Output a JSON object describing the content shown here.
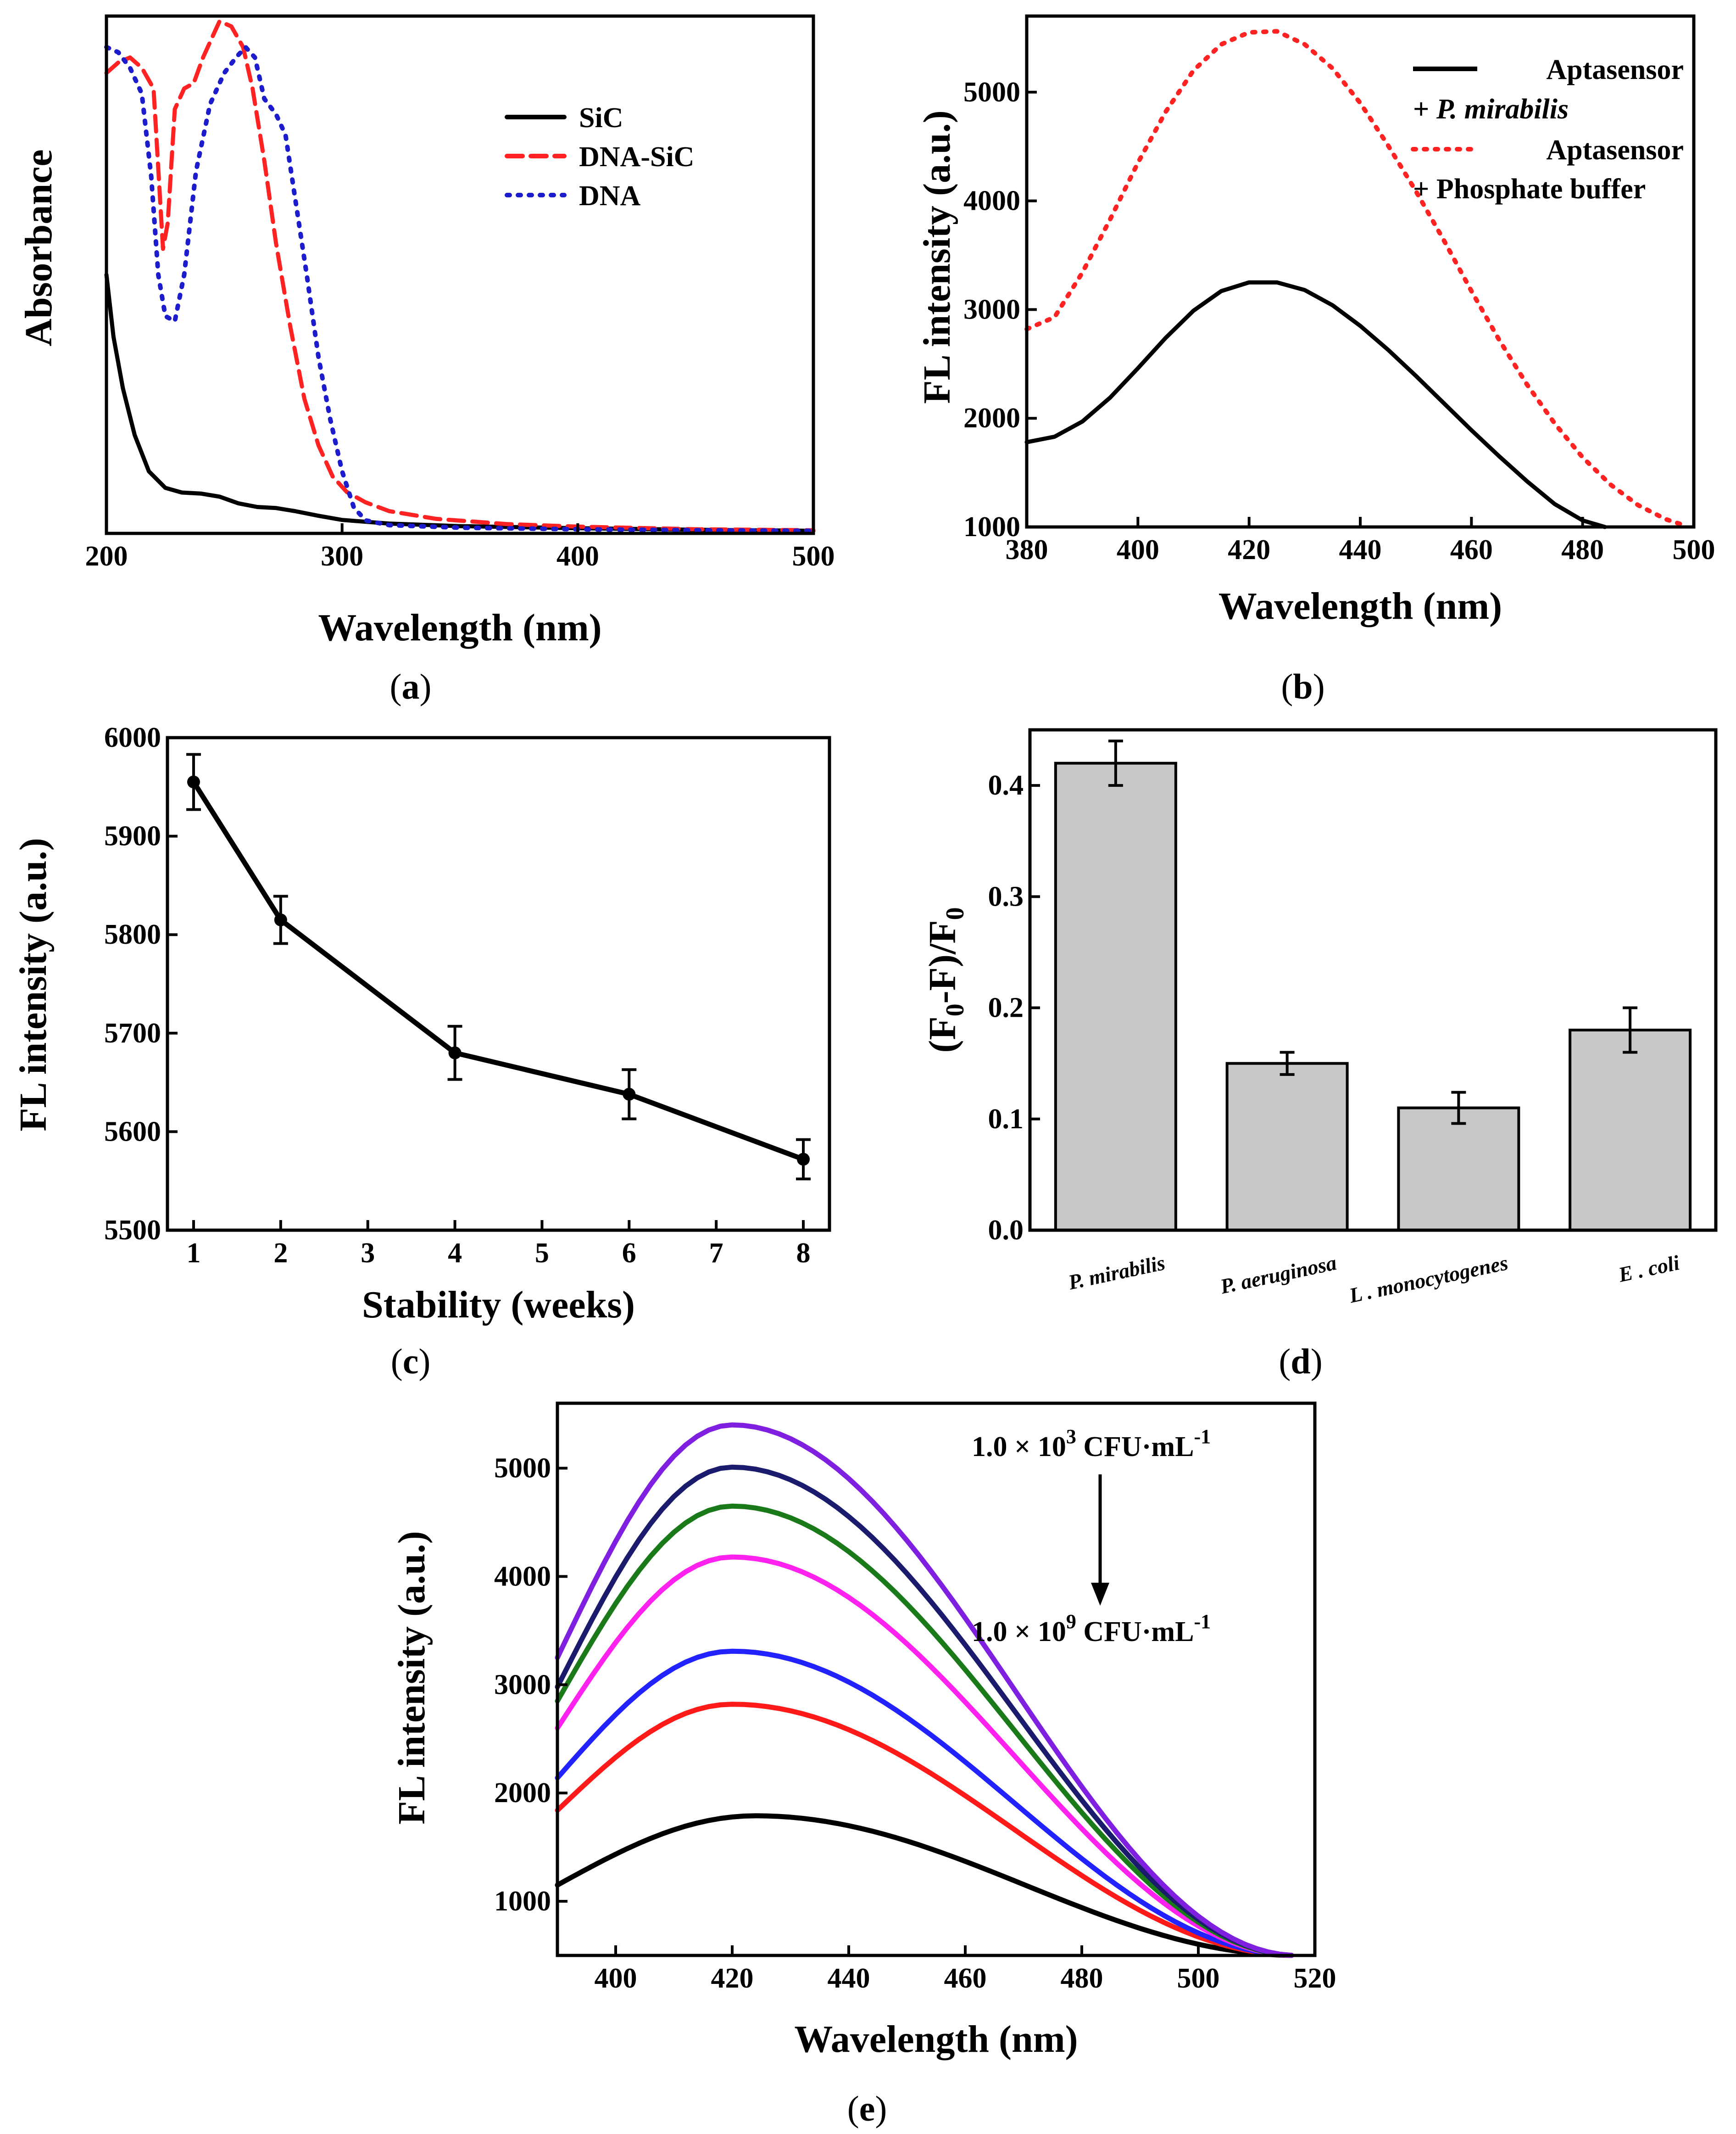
{
  "chart_data": [
    {
      "id": "a",
      "type": "line",
      "caption": "a",
      "xlabel": "Wavelength (nm)",
      "ylabel": "Absorbance",
      "xlim": [
        200,
        500
      ],
      "ylim": [
        0,
        1
      ],
      "xticks": [
        200,
        300,
        400,
        500
      ],
      "legend_position": "top-right",
      "series": [
        {
          "name": "SiC",
          "color": "#000000",
          "dash": "solid",
          "points": [
            [
              200,
              0.5
            ],
            [
              203,
              0.38
            ],
            [
              207,
              0.28
            ],
            [
              212,
              0.19
            ],
            [
              218,
              0.12
            ],
            [
              225,
              0.088
            ],
            [
              232,
              0.079
            ],
            [
              240,
              0.077
            ],
            [
              248,
              0.071
            ],
            [
              256,
              0.058
            ],
            [
              264,
              0.051
            ],
            [
              272,
              0.049
            ],
            [
              280,
              0.043
            ],
            [
              290,
              0.034
            ],
            [
              300,
              0.026
            ],
            [
              320,
              0.019
            ],
            [
              350,
              0.014
            ],
            [
              400,
              0.01
            ],
            [
              450,
              0.007
            ],
            [
              500,
              0.005
            ]
          ]
        },
        {
          "name": "DNA-SiC",
          "color": "#ff2222",
          "dash": "dashed",
          "points": [
            [
              200,
              0.89
            ],
            [
              205,
              0.91
            ],
            [
              210,
              0.92
            ],
            [
              215,
              0.9
            ],
            [
              220,
              0.86
            ],
            [
              224,
              0.55
            ],
            [
              226,
              0.6
            ],
            [
              229,
              0.82
            ],
            [
              233,
              0.86
            ],
            [
              237,
              0.87
            ],
            [
              241,
              0.92
            ],
            [
              245,
              0.96
            ],
            [
              248,
              0.99
            ],
            [
              253,
              0.98
            ],
            [
              258,
              0.94
            ],
            [
              262,
              0.86
            ],
            [
              267,
              0.72
            ],
            [
              272,
              0.56
            ],
            [
              278,
              0.4
            ],
            [
              284,
              0.26
            ],
            [
              290,
              0.17
            ],
            [
              296,
              0.11
            ],
            [
              302,
              0.08
            ],
            [
              310,
              0.06
            ],
            [
              320,
              0.043
            ],
            [
              340,
              0.028
            ],
            [
              370,
              0.018
            ],
            [
              400,
              0.013
            ],
            [
              450,
              0.008
            ],
            [
              500,
              0.006
            ]
          ]
        },
        {
          "name": "DNA",
          "color": "#1c1ccc",
          "dash": "dotted",
          "points": [
            [
              200,
              0.94
            ],
            [
              205,
              0.93
            ],
            [
              210,
              0.9
            ],
            [
              215,
              0.85
            ],
            [
              219,
              0.69
            ],
            [
              222,
              0.5
            ],
            [
              225,
              0.42
            ],
            [
              229,
              0.41
            ],
            [
              233,
              0.5
            ],
            [
              238,
              0.7
            ],
            [
              244,
              0.83
            ],
            [
              250,
              0.89
            ],
            [
              255,
              0.92
            ],
            [
              259,
              0.94
            ],
            [
              263,
              0.92
            ],
            [
              267,
              0.84
            ],
            [
              272,
              0.81
            ],
            [
              276,
              0.77
            ],
            [
              280,
              0.65
            ],
            [
              285,
              0.5
            ],
            [
              290,
              0.34
            ],
            [
              295,
              0.22
            ],
            [
              300,
              0.12
            ],
            [
              305,
              0.05
            ],
            [
              310,
              0.025
            ],
            [
              320,
              0.016
            ],
            [
              350,
              0.011
            ],
            [
              400,
              0.008
            ],
            [
              450,
              0.006
            ],
            [
              500,
              0.005
            ]
          ]
        }
      ]
    },
    {
      "id": "b",
      "type": "line",
      "caption": "b",
      "xlabel": "Wavelength (nm)",
      "ylabel": "FL intensity (a.u.)",
      "xlim": [
        380,
        500
      ],
      "ylim": [
        1000,
        5700
      ],
      "xticks": [
        380,
        400,
        420,
        440,
        460,
        480,
        500
      ],
      "yticks": [
        1000,
        2000,
        3000,
        4000,
        5000
      ],
      "legend_position": "top-right",
      "legend": [
        {
          "line1": "Aptasensor",
          "line2_prefix": "+ ",
          "line2": "P. mirabilis",
          "line2_italic": true
        },
        {
          "line1": "Aptasensor",
          "line2_prefix": "+ ",
          "line2": "Phosphate buffer",
          "line2_italic": false
        }
      ],
      "series": [
        {
          "name": "Aptasensor + P. mirabilis",
          "color": "#000000",
          "dash": "solid",
          "points": [
            [
              380,
              1780
            ],
            [
              385,
              1830
            ],
            [
              390,
              1970
            ],
            [
              395,
              2190
            ],
            [
              400,
              2460
            ],
            [
              405,
              2740
            ],
            [
              410,
              2990
            ],
            [
              415,
              3170
            ],
            [
              420,
              3250
            ],
            [
              425,
              3250
            ],
            [
              430,
              3180
            ],
            [
              435,
              3040
            ],
            [
              440,
              2850
            ],
            [
              445,
              2630
            ],
            [
              450,
              2390
            ],
            [
              455,
              2140
            ],
            [
              460,
              1890
            ],
            [
              465,
              1650
            ],
            [
              470,
              1420
            ],
            [
              475,
              1210
            ],
            [
              480,
              1060
            ],
            [
              484,
              1000
            ]
          ]
        },
        {
          "name": "Aptasensor + Phosphate buffer",
          "color": "#ff2222",
          "dash": "dotted",
          "points": [
            [
              380,
              2820
            ],
            [
              385,
              2930
            ],
            [
              390,
              3340
            ],
            [
              395,
              3830
            ],
            [
              400,
              4350
            ],
            [
              405,
              4820
            ],
            [
              410,
              5200
            ],
            [
              415,
              5440
            ],
            [
              420,
              5550
            ],
            [
              425,
              5560
            ],
            [
              430,
              5440
            ],
            [
              435,
              5220
            ],
            [
              440,
              4900
            ],
            [
              445,
              4510
            ],
            [
              450,
              4090
            ],
            [
              455,
              3640
            ],
            [
              460,
              3170
            ],
            [
              465,
              2720
            ],
            [
              470,
              2310
            ],
            [
              475,
              1950
            ],
            [
              480,
              1640
            ],
            [
              485,
              1390
            ],
            [
              490,
              1200
            ],
            [
              495,
              1070
            ],
            [
              498,
              1020
            ]
          ]
        }
      ]
    },
    {
      "id": "c",
      "type": "line",
      "caption": "c",
      "xlabel": "Stability (weeks)",
      "ylabel": "FL intensity (a.u.)",
      "xlim": [
        0.7,
        8.3
      ],
      "ylim": [
        5500,
        6000
      ],
      "xticks": [
        1,
        2,
        3,
        4,
        5,
        6,
        7,
        8
      ],
      "yticks": [
        5500,
        5600,
        5700,
        5800,
        5900,
        6000
      ],
      "series": [
        {
          "name": "Stability",
          "color": "#000000",
          "x": [
            1,
            2,
            4,
            6,
            8
          ],
          "y": [
            5955,
            5815,
            5680,
            5638,
            5572
          ],
          "err": [
            28,
            24,
            27,
            25,
            20
          ]
        }
      ]
    },
    {
      "id": "d",
      "type": "bar",
      "caption": "d",
      "xlabel": "",
      "ylabel": "(F0-F)/F0",
      "ylabel_parts": [
        "(F",
        "0",
        "-F)/F",
        "0"
      ],
      "ylim": [
        0,
        0.45
      ],
      "yticks": [
        "0.0",
        "0.1",
        "0.2",
        "0.3",
        "0.4"
      ],
      "categories": [
        "P. mirabilis",
        "P. aeruginosa",
        "L . monocytogenes",
        "E . coli"
      ],
      "values": [
        0.42,
        0.15,
        0.11,
        0.18
      ],
      "errors": [
        0.02,
        0.01,
        0.014,
        0.02
      ],
      "bar_color": "#c8c8c8"
    },
    {
      "id": "e",
      "type": "line",
      "caption": "e",
      "xlabel": "Wavelength (nm)",
      "ylabel": "FL intensity (a.u.)",
      "xlim": [
        390,
        520
      ],
      "ylim": [
        500,
        5600
      ],
      "xticks": [
        400,
        420,
        440,
        460,
        480,
        500,
        520
      ],
      "yticks": [
        1000,
        2000,
        3000,
        4000,
        5000
      ],
      "annotation_top": {
        "prefix": "1.0 × 10",
        "exp": "3",
        "unit": " CFU·mL",
        "unit_exp": "-1"
      },
      "annotation_bottom": {
        "prefix": "1.0 × 10",
        "exp": "9",
        "unit": " CFU·mL",
        "unit_exp": "-1"
      },
      "series": [
        {
          "name": "curve-1",
          "color": "#7f1fe0",
          "base": 3250,
          "peak": 5400,
          "peak_x": 420
        },
        {
          "name": "curve-2",
          "color": "#1b1b6e",
          "base": 2980,
          "peak": 5010,
          "peak_x": 420
        },
        {
          "name": "curve-3",
          "color": "#1a7a1a",
          "base": 2850,
          "peak": 4650,
          "peak_x": 420
        },
        {
          "name": "curve-4",
          "color": "#ff22ee",
          "base": 2600,
          "peak": 4180,
          "peak_x": 420
        },
        {
          "name": "curve-5",
          "color": "#2222ff",
          "base": 2140,
          "peak": 3310,
          "peak_x": 420
        },
        {
          "name": "curve-6",
          "color": "#ff1a1a",
          "base": 1840,
          "peak": 2820,
          "peak_x": 420
        },
        {
          "name": "curve-7",
          "color": "#000000",
          "base": 1150,
          "peak": 1790,
          "peak_x": 424
        }
      ]
    }
  ]
}
